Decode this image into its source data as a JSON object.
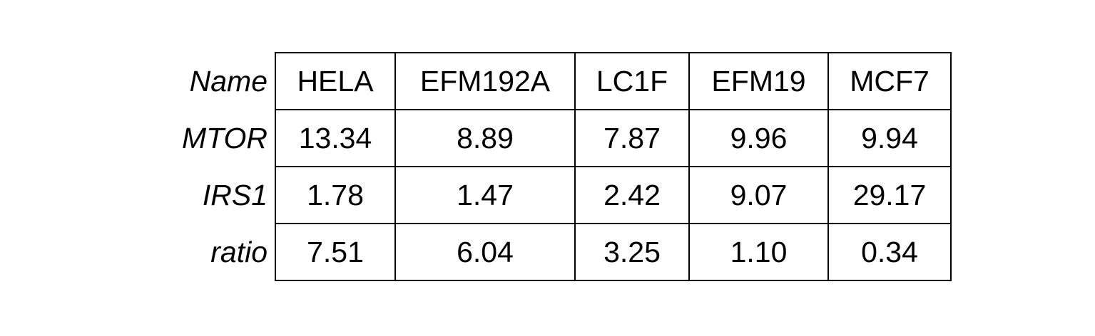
{
  "chart_data": {
    "type": "table",
    "row_labels": [
      "Name",
      "MTOR",
      "IRS1",
      "ratio"
    ],
    "columns": [
      "HELA",
      "EFM192A",
      "LC1F",
      "EFM19",
      "MCF7"
    ],
    "rows": [
      {
        "label": "MTOR",
        "values": [
          "13.34",
          "8.89",
          "7.87",
          "9.96",
          "9.94"
        ]
      },
      {
        "label": "IRS1",
        "values": [
          "1.78",
          "1.47",
          "2.42",
          "9.07",
          "29.17"
        ]
      },
      {
        "label": "ratio",
        "values": [
          "7.51",
          "6.04",
          "3.25",
          "1.10",
          "0.34"
        ]
      }
    ]
  }
}
